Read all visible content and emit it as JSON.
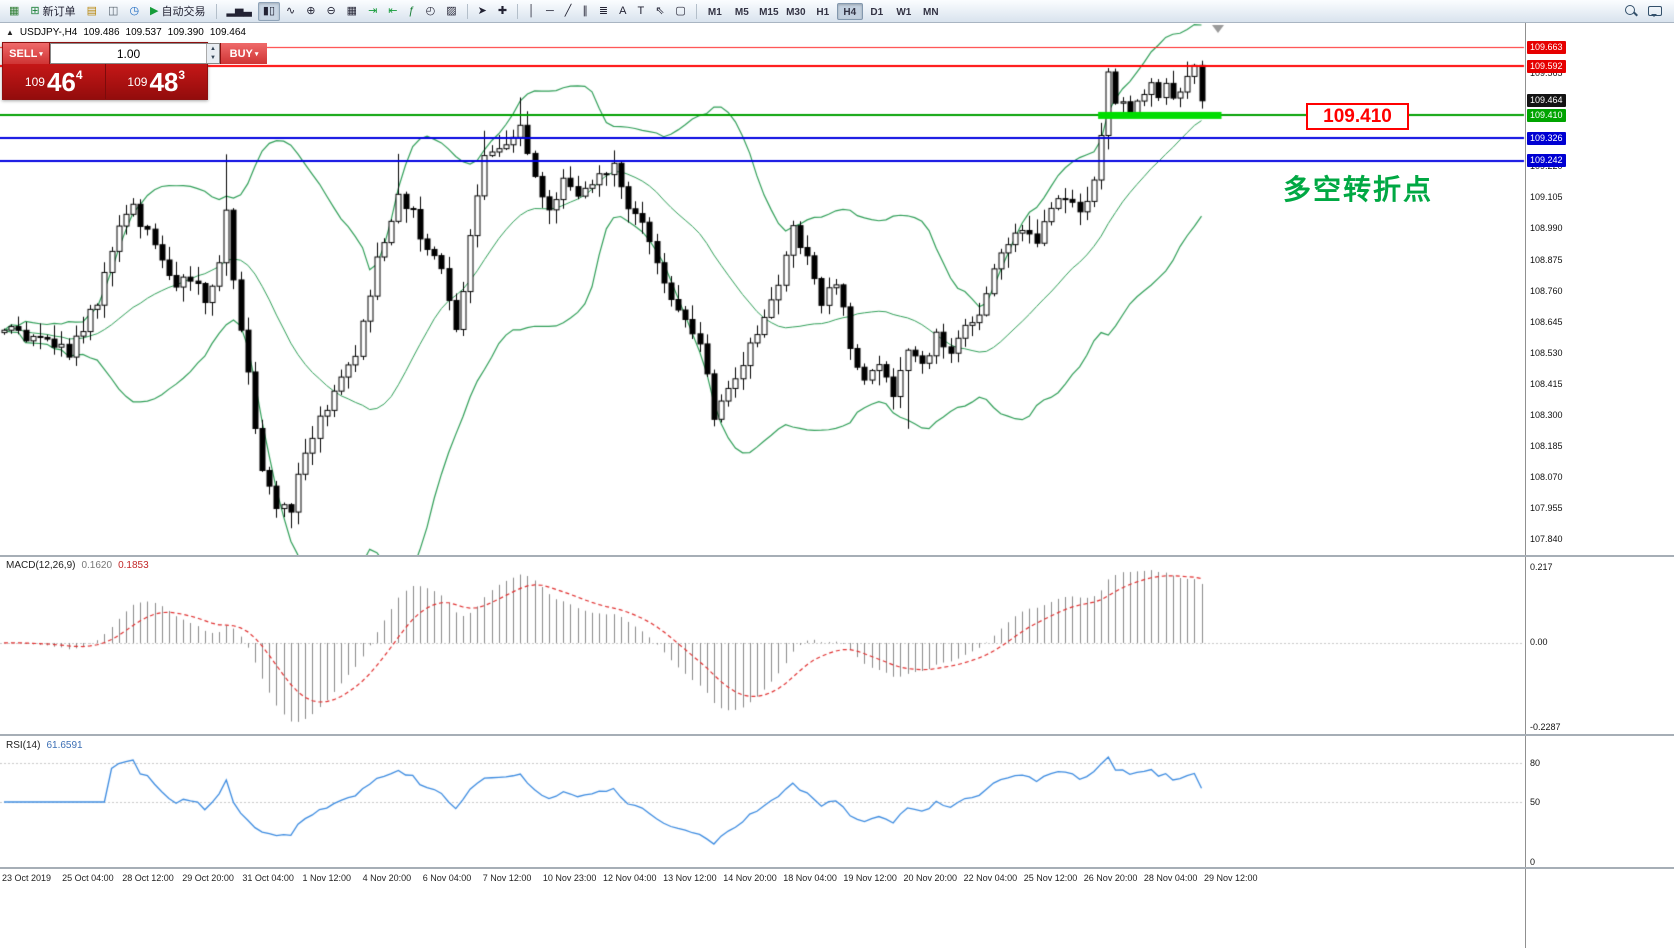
{
  "toolbar": {
    "groups": [
      {
        "items": [
          {
            "name": "app-icon",
            "glyph": "▦",
            "glyph_color": "#2e7d32"
          },
          {
            "name": "new-order-button",
            "glyph": "⊞",
            "glyph_color": "#1a7f37",
            "label": "新订单"
          },
          {
            "name": "charts-icon",
            "glyph": "▤",
            "glyph_color": "#b8860b"
          },
          {
            "name": "profiles-icon",
            "glyph": "◫",
            "glyph_color": "#55606b"
          },
          {
            "name": "refresh-icon",
            "glyph": "◷",
            "glyph_color": "#1565c0"
          },
          {
            "name": "auto-trading-button",
            "glyph": "▶",
            "glyph_color": "#169c3a",
            "label": "自动交易"
          }
        ]
      },
      {
        "items": [
          {
            "name": "bar-chart-type-icon",
            "glyph": "▂▅▃"
          },
          {
            "name": "candle-chart-type-icon",
            "glyph": "▮▯",
            "active": true
          },
          {
            "name": "line-chart-type-icon",
            "glyph": "∿"
          },
          {
            "name": "zoom-in-icon",
            "glyph": "⊕"
          },
          {
            "name": "zoom-out-icon",
            "glyph": "⊖"
          },
          {
            "name": "tile-windows-icon",
            "glyph": "▦"
          },
          {
            "name": "auto-scroll-icon",
            "glyph": "⇥",
            "glyph_color": "#169c3a"
          },
          {
            "name": "chart-shift-icon",
            "glyph": "⇤",
            "glyph_color": "#169c3a"
          },
          {
            "name": "indicators-icon",
            "glyph": "ƒ",
            "glyph_color": "#1a7f37"
          },
          {
            "name": "periods-icon",
            "glyph": "◴"
          },
          {
            "name": "templates-icon",
            "glyph": "▨"
          }
        ]
      },
      {
        "items": [
          {
            "name": "cursor-icon",
            "glyph": "➤"
          },
          {
            "name": "crosshair-icon",
            "glyph": "✚"
          }
        ]
      },
      {
        "items": [
          {
            "name": "vertical-line-icon",
            "glyph": "│"
          },
          {
            "name": "horizontal-line-icon",
            "glyph": "─"
          },
          {
            "name": "trendline-icon",
            "glyph": "╱"
          },
          {
            "name": "channel-icon",
            "glyph": "∥"
          },
          {
            "name": "fibonacci-icon",
            "glyph": "≣"
          },
          {
            "name": "text-icon",
            "glyph": "A"
          },
          {
            "name": "label-icon",
            "glyph": "T"
          },
          {
            "name": "arrows-icon",
            "glyph": "⇖"
          },
          {
            "name": "shapes-icon",
            "glyph": "▢"
          }
        ]
      }
    ],
    "timeframes": {
      "items": [
        "M1",
        "M5",
        "M15",
        "M30",
        "H1",
        "H4",
        "D1",
        "W1",
        "MN"
      ],
      "active": "H4"
    },
    "right_icons": [
      {
        "name": "search-icon"
      },
      {
        "name": "chat-icon"
      }
    ]
  },
  "header": {
    "toggle": "▲",
    "symbol": "USDJPY-,H4",
    "open": "109.486",
    "high": "109.537",
    "low": "109.390",
    "close": "109.464"
  },
  "trade_panel": {
    "sell_label": "SELL",
    "buy_label": "BUY",
    "volume": "1.00",
    "sell_price": {
      "prefix": "109",
      "big": "46",
      "sup": "4"
    },
    "buy_price": {
      "prefix": "109",
      "big": "48",
      "sup": "3"
    }
  },
  "chart_data": {
    "type": "candlestick",
    "symbol": "USDJPY-",
    "timeframe": "H4",
    "current": {
      "open": 109.486,
      "high": 109.537,
      "low": 109.39,
      "close": 109.464
    },
    "y_axis": {
      "ticks": [
        "109.565",
        "109.220",
        "109.105",
        "108.990",
        "108.875",
        "108.760",
        "108.645",
        "108.530",
        "108.415",
        "108.300",
        "108.185",
        "108.070",
        "107.955",
        "107.840"
      ],
      "tags": [
        {
          "text": "109.663",
          "price": 109.663,
          "style": "red"
        },
        {
          "text": "109.592",
          "price": 109.592,
          "style": "red"
        },
        {
          "text": "109.464",
          "price": 109.464,
          "style": "current"
        },
        {
          "text": "109.410",
          "price": 109.41,
          "style": "green"
        },
        {
          "text": "109.326",
          "price": 109.326,
          "style": "blue"
        },
        {
          "text": "109.242",
          "price": 109.242,
          "style": "blue"
        }
      ]
    },
    "x_axis": {
      "labels": [
        "23 Oct 2019",
        "25 Oct 04:00",
        "28 Oct 12:00",
        "29 Oct 20:00",
        "31 Oct 04:00",
        "1 Nov 12:00",
        "4 Nov 20:00",
        "6 Nov 04:00",
        "7 Nov 12:00",
        "10 Nov 23:00",
        "12 Nov 04:00",
        "13 Nov 12:00",
        "14 Nov 20:00",
        "18 Nov 04:00",
        "19 Nov 12:00",
        "20 Nov 20:00",
        "22 Nov 04:00",
        "25 Nov 12:00",
        "26 Nov 20:00",
        "28 Nov 04:00",
        "29 Nov 12:00"
      ]
    },
    "candles": {
      "count": 168,
      "last_close": 109.464,
      "waypoints": [
        [
          0,
          108.62
        ],
        [
          6,
          108.58
        ],
        [
          9,
          108.52
        ],
        [
          13,
          108.72
        ],
        [
          16,
          109.0
        ],
        [
          18,
          109.06
        ],
        [
          21,
          108.92
        ],
        [
          24,
          108.76
        ],
        [
          26,
          108.82
        ],
        [
          28,
          108.74
        ],
        [
          30,
          108.85
        ],
        [
          31,
          109.05
        ],
        [
          32,
          108.8
        ],
        [
          34,
          108.45
        ],
        [
          36,
          108.08
        ],
        [
          38,
          107.97
        ],
        [
          40,
          107.96
        ],
        [
          42,
          108.18
        ],
        [
          45,
          108.33
        ],
        [
          49,
          108.52
        ],
        [
          52,
          108.88
        ],
        [
          55,
          109.12
        ],
        [
          57,
          109.04
        ],
        [
          59,
          108.9
        ],
        [
          61,
          108.84
        ],
        [
          63,
          108.6
        ],
        [
          65,
          108.96
        ],
        [
          67,
          109.24
        ],
        [
          70,
          109.3
        ],
        [
          72,
          109.38
        ],
        [
          74,
          109.16
        ],
        [
          76,
          109.06
        ],
        [
          78,
          109.18
        ],
        [
          80,
          109.12
        ],
        [
          83,
          109.2
        ],
        [
          85,
          109.22
        ],
        [
          87,
          109.06
        ],
        [
          89,
          109.0
        ],
        [
          91,
          108.88
        ],
        [
          93,
          108.72
        ],
        [
          95,
          108.66
        ],
        [
          97,
          108.58
        ],
        [
          99,
          108.3
        ],
        [
          101,
          108.42
        ],
        [
          103,
          108.5
        ],
        [
          106,
          108.68
        ],
        [
          108,
          108.76
        ],
        [
          110,
          109.0
        ],
        [
          112,
          108.88
        ],
        [
          114,
          108.72
        ],
        [
          116,
          108.8
        ],
        [
          118,
          108.56
        ],
        [
          120,
          108.44
        ],
        [
          122,
          108.5
        ],
        [
          124,
          108.38
        ],
        [
          126,
          108.55
        ],
        [
          128,
          108.47
        ],
        [
          130,
          108.6
        ],
        [
          132,
          108.54
        ],
        [
          134,
          108.62
        ],
        [
          136,
          108.66
        ],
        [
          138,
          108.84
        ],
        [
          140,
          108.92
        ],
        [
          142,
          109.0
        ],
        [
          144,
          108.95
        ],
        [
          146,
          109.05
        ],
        [
          148,
          109.12
        ],
        [
          150,
          109.04
        ],
        [
          152,
          109.18
        ],
        [
          153,
          109.35
        ],
        [
          154,
          109.55
        ],
        [
          155,
          109.47
        ],
        [
          156,
          109.44
        ],
        [
          157,
          109.4
        ],
        [
          158,
          109.46
        ],
        [
          159,
          109.5
        ],
        [
          160,
          109.52
        ],
        [
          161,
          109.49
        ],
        [
          162,
          109.55
        ],
        [
          163,
          109.47
        ],
        [
          164,
          109.52
        ],
        [
          165,
          109.55
        ],
        [
          166,
          109.62
        ],
        [
          167,
          109.464
        ]
      ],
      "spikes": [
        {
          "index": 31,
          "extra_high": 0.2
        },
        {
          "index": 40,
          "extra_low": 0.04
        },
        {
          "index": 55,
          "extra_high": 0.1
        },
        {
          "index": 67,
          "extra_high": 0.08
        },
        {
          "index": 72,
          "extra_high": 0.08
        },
        {
          "index": 126,
          "extra_low": 0.18
        }
      ]
    },
    "horizontal_lines": [
      {
        "price": 109.663,
        "color": "#ff2020",
        "width": 1
      },
      {
        "price": 109.592,
        "color": "#ff0000",
        "width": 2
      },
      {
        "price": 109.41,
        "color": "#00a000",
        "width": 2
      },
      {
        "price": 109.326,
        "color": "#0000e0",
        "width": 2
      },
      {
        "price": 109.242,
        "color": "#0000e0",
        "width": 2
      }
    ],
    "highlight_bar": {
      "price": 109.41,
      "from_index": 153,
      "to_x_extra": 20,
      "color": "#00dd00",
      "thickness": 7
    },
    "indicators": {
      "bollinger": {
        "period": 20,
        "deviation": 2,
        "color": "#2f9e57"
      },
      "macd": {
        "name": "MACD(12,26,9)",
        "main_value": "0.1620",
        "signal_value": "0.1853",
        "scale_top": "0.217",
        "scale_zero": "0.00",
        "scale_bottom": "-0.2287",
        "histogram_color": "#8a8a8a",
        "signal_color": "#e03030"
      },
      "rsi": {
        "name": "RSI(14)",
        "value": "61.6591",
        "levels": [
          "80",
          "50",
          "0"
        ],
        "line_color": "#3c8be0"
      }
    },
    "annotations": [
      {
        "name": "price-callout",
        "text": "109.410",
        "color": "#ff0000"
      },
      {
        "name": "note",
        "text": "多空转折点",
        "color": "#00a843"
      }
    ]
  }
}
